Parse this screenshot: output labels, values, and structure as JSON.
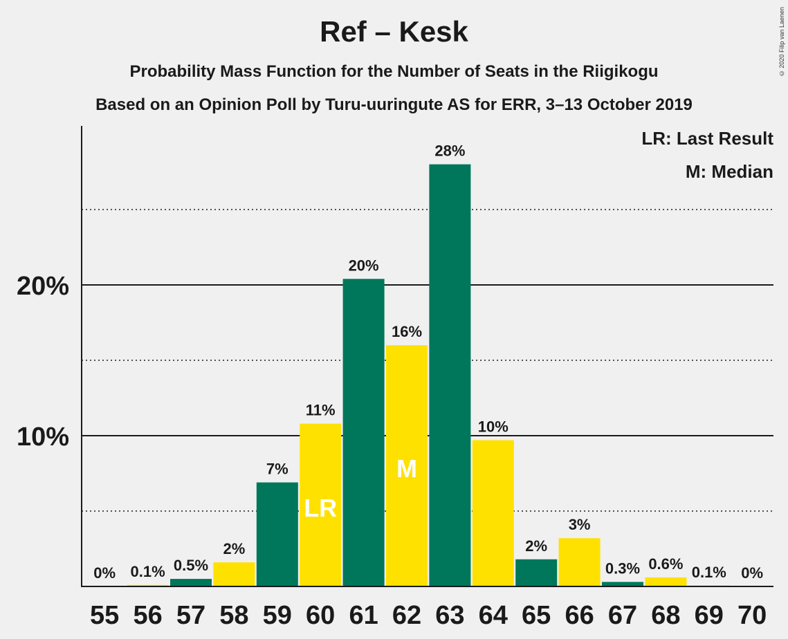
{
  "title": "Ref – Kesk",
  "subtitle1": "Probability Mass Function for the Number of Seats in the Riigikogu",
  "subtitle2": "Based on an Opinion Poll by Turu-uuringute AS for ERR, 3–13 October 2019",
  "copyright": "© 2020 Filip van Laenen",
  "legend": {
    "lr": "LR: Last Result",
    "m": "M: Median"
  },
  "colors": {
    "green": "#00775a",
    "yellow": "#ffe100",
    "background": "#f0f0f0"
  },
  "chart_data": {
    "type": "bar",
    "categories": [
      "55",
      "56",
      "57",
      "58",
      "59",
      "60",
      "61",
      "62",
      "63",
      "64",
      "65",
      "66",
      "67",
      "68",
      "69",
      "70"
    ],
    "values": [
      0,
      0.1,
      0.5,
      1.6,
      6.9,
      10.8,
      20.4,
      16.0,
      28.0,
      9.7,
      1.8,
      3.2,
      0.3,
      0.6,
      0.05,
      0
    ],
    "labels": [
      "0%",
      "0.1%",
      "0.5%",
      "2%",
      "7%",
      "11%",
      "20%",
      "16%",
      "28%",
      "10%",
      "2%",
      "3%",
      "0.3%",
      "0.6%",
      "0.1%",
      "0%"
    ],
    "bar_colors": [
      "green",
      "yellow",
      "green",
      "yellow",
      "green",
      "yellow",
      "green",
      "yellow",
      "green",
      "yellow",
      "green",
      "yellow",
      "green",
      "yellow",
      "green",
      "yellow"
    ],
    "markers": {
      "60": "LR",
      "62": "M"
    },
    "yticks": [
      {
        "value": 10,
        "label": "10%"
      },
      {
        "value": 20,
        "label": "20%"
      }
    ],
    "minor_gridlines": [
      5,
      15,
      25
    ],
    "ylim": [
      0,
      30.5
    ],
    "grid": true,
    "legend_position": "top-right"
  }
}
